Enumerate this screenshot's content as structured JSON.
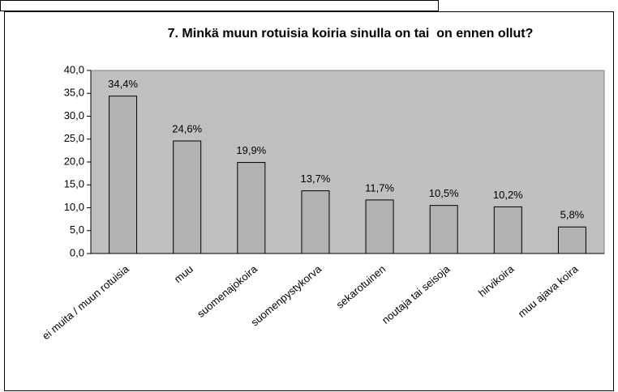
{
  "chart_data": {
    "type": "bar",
    "title": "7. Minkä muun rotuisia koiria sinulla on tai  on ennen ollut?",
    "categories": [
      "ei muita / muun rotuisia",
      "muu",
      "suomenajokoira",
      "suomenpystykorva",
      "sekarotuinen",
      "noutaja tai seisoja",
      "hirvikoira",
      "muu ajava koira"
    ],
    "values": [
      34.4,
      24.6,
      19.9,
      13.7,
      11.7,
      10.5,
      10.2,
      5.8
    ],
    "value_labels": [
      "34,4%",
      "24,6%",
      "19,9%",
      "13,7%",
      "11,7%",
      "10,5%",
      "10,2%",
      "5,8%"
    ],
    "color": "#b2b2b2",
    "ylim": [
      0,
      40
    ],
    "yticks": [
      {
        "value": 0,
        "label": "0,0"
      },
      {
        "value": 5,
        "label": "5,0"
      },
      {
        "value": 10,
        "label": "10,0"
      },
      {
        "value": 15,
        "label": "15,0"
      },
      {
        "value": 20,
        "label": "20,0"
      },
      {
        "value": 25,
        "label": "25,0"
      },
      {
        "value": 30,
        "label": "30,0"
      },
      {
        "value": 35,
        "label": "35,0"
      },
      {
        "value": 40,
        "label": "40,0"
      }
    ],
    "grid": false
  }
}
